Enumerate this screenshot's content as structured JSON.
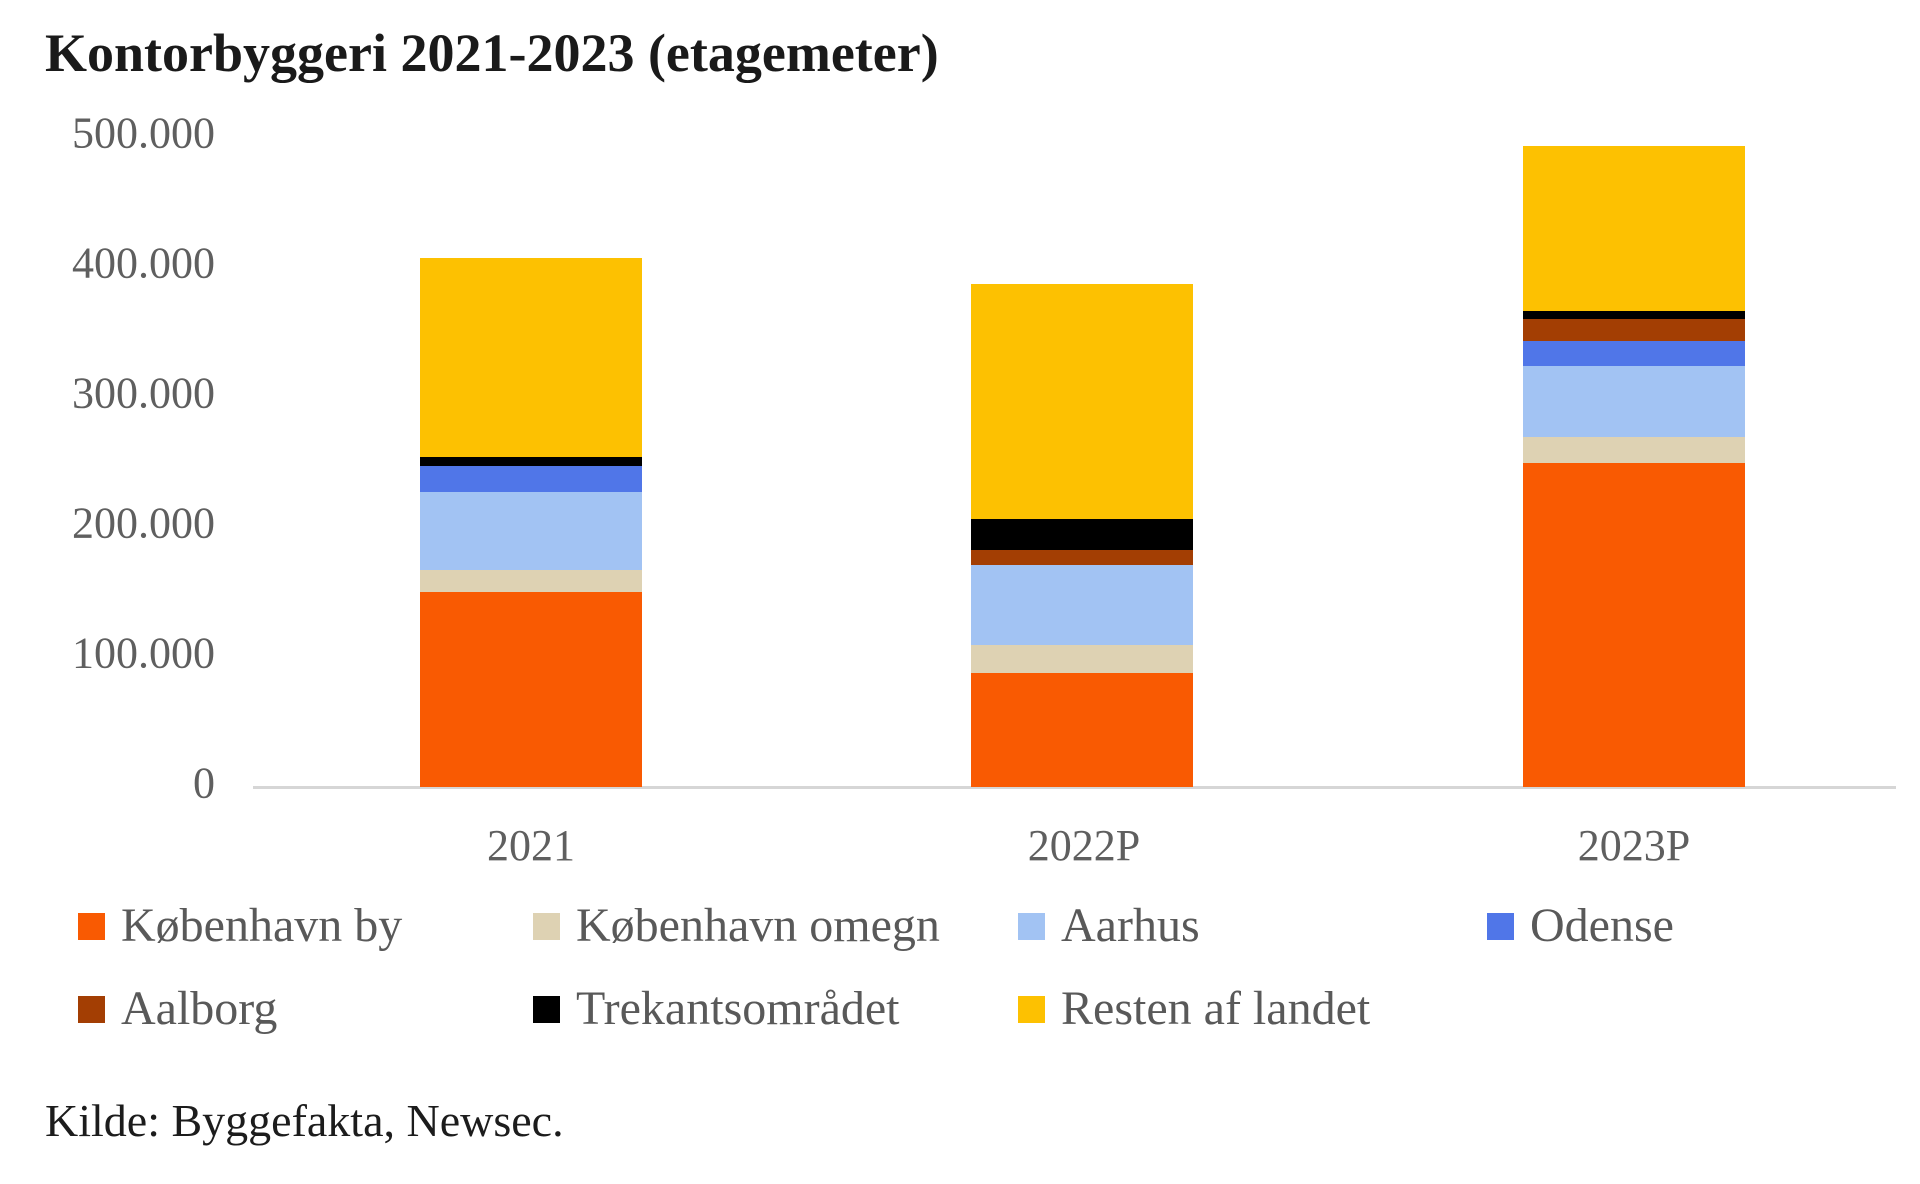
{
  "title": "Kontorbyggeri 2021-2023 (etagemeter)",
  "source_note": "Kilde: Byggefakta, Newsec.",
  "colors": {
    "kobenhavn_by": "#f95a02",
    "kobenhavn_omegn": "#ded2b3",
    "aarhus": "#a2c3f3",
    "odense": "#5076e8",
    "aalborg": "#a33e03",
    "trekantsomradet": "#000000",
    "resten_af_landet": "#fdc101",
    "axis_line": "#d6d6d6",
    "label_gray": "#5f5f5f"
  },
  "chart_data": {
    "type": "bar",
    "stacked": true,
    "title": "Kontorbyggeri 2021-2023 (etagemeter)",
    "categories": [
      "2021",
      "2022P",
      "2023P"
    ],
    "series": [
      {
        "name": "København by",
        "color": "#f95a02",
        "values": [
          150000,
          88000,
          249000
        ]
      },
      {
        "name": "København omegn",
        "color": "#ded2b3",
        "values": [
          17000,
          21000,
          20000
        ]
      },
      {
        "name": "Aarhus",
        "color": "#a2c3f3",
        "values": [
          60000,
          62000,
          55000
        ]
      },
      {
        "name": "Odense",
        "color": "#5076e8",
        "values": [
          20000,
          0,
          19000
        ]
      },
      {
        "name": "Aalborg",
        "color": "#a33e03",
        "values": [
          0,
          11000,
          17000
        ]
      },
      {
        "name": "Trekantsområdet",
        "color": "#000000",
        "values": [
          7000,
          24000,
          6000
        ]
      },
      {
        "name": "Resten af landet",
        "color": "#fdc101",
        "values": [
          153000,
          181000,
          127000
        ]
      }
    ],
    "totals_approx": [
      407000,
      387000,
      493000
    ],
    "ylabel": "",
    "xlabel": "",
    "ylim": [
      0,
      500000
    ],
    "grid": false,
    "legend_position": "bottom",
    "y_ticks": [
      "500.000",
      "400.000",
      "300.000",
      "200.000",
      "100.000",
      "0"
    ]
  },
  "legend": {
    "items": [
      {
        "label": "København by",
        "color": "#f95a02"
      },
      {
        "label": "København omegn",
        "color": "#ded2b3"
      },
      {
        "label": "Aarhus",
        "color": "#a2c3f3"
      },
      {
        "label": "Odense",
        "color": "#5076e8"
      },
      {
        "label": "Aalborg",
        "color": "#a33e03"
      },
      {
        "label": "Trekantsområdet",
        "color": "#000000"
      },
      {
        "label": "Resten af landet",
        "color": "#fdc101"
      }
    ]
  }
}
